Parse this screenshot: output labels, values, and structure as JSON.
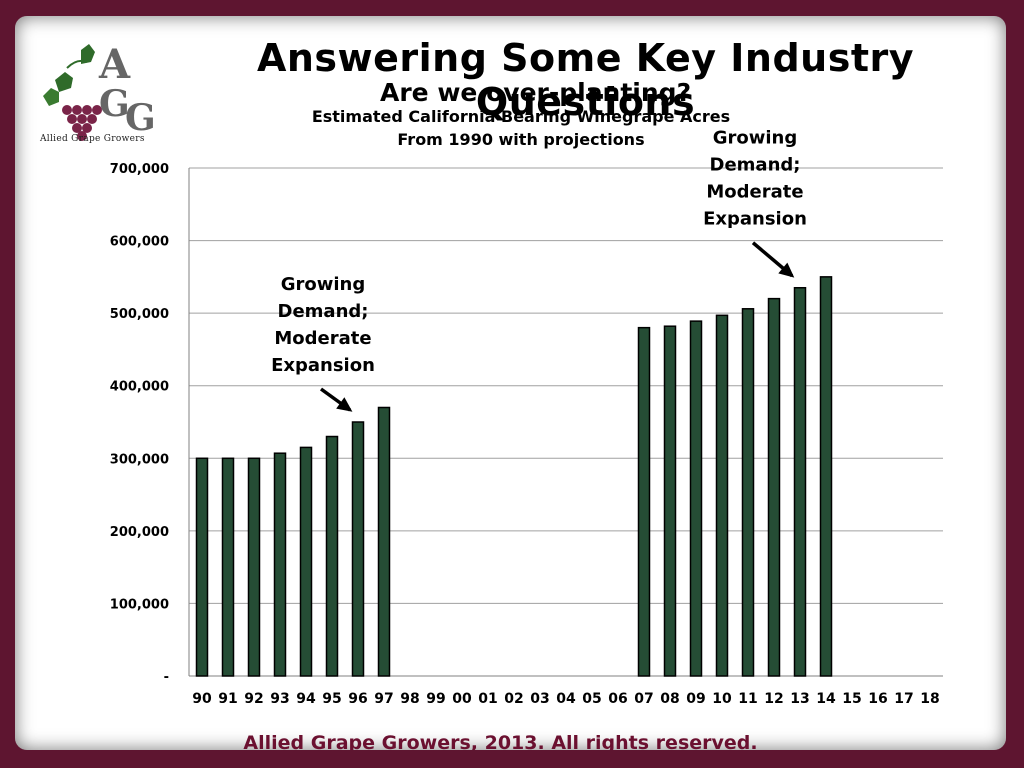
{
  "slide": {
    "title": "Answering Some Key Industry Questions",
    "subtitle": "Are we over-planting?",
    "footer": "Allied Grape Growers, 2013.  All rights reserved.",
    "logo": {
      "letters": "AGG",
      "text": "Allied Grape Growers"
    }
  },
  "chart_data": {
    "type": "bar",
    "title_lines": [
      "Estimated California Bearing Winegrape Acres",
      "From 1990 with projections"
    ],
    "xlabel": "",
    "ylabel": "",
    "ylim": [
      0,
      700000
    ],
    "yticks": [
      0,
      100000,
      200000,
      300000,
      400000,
      500000,
      600000,
      700000
    ],
    "ytick_labels": [
      "-",
      "100,000",
      "200,000",
      "300,000",
      "400,000",
      "500,000",
      "600,000",
      "700,000"
    ],
    "grid": true,
    "bar_color": "#254d35",
    "categories": [
      "90",
      "91",
      "92",
      "93",
      "94",
      "95",
      "96",
      "97",
      "98",
      "99",
      "00",
      "01",
      "02",
      "03",
      "04",
      "05",
      "06",
      "07",
      "08",
      "09",
      "10",
      "11",
      "12",
      "13",
      "14",
      "15",
      "16",
      "17",
      "18"
    ],
    "values": [
      300000,
      300000,
      300000,
      307000,
      315000,
      330000,
      350000,
      370000,
      null,
      null,
      null,
      null,
      null,
      null,
      null,
      null,
      null,
      480000,
      482000,
      489000,
      497000,
      506000,
      520000,
      535000,
      550000,
      null,
      null,
      null,
      null
    ],
    "annotations": [
      {
        "lines": [
          "Growing",
          "Demand;",
          "Moderate",
          "Expansion"
        ],
        "target_category": "96"
      },
      {
        "lines": [
          "Growing",
          "Demand;",
          "Moderate",
          "Expansion"
        ],
        "target_category": "13"
      }
    ]
  }
}
